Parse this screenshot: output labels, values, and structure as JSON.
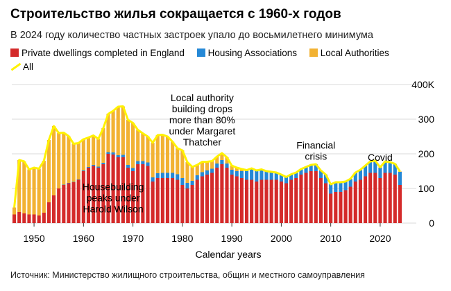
{
  "title": "Строительство жилья сокращается с 1960-х годов",
  "subtitle": "В 2024 году количество частных застроек упало до восьмилетнего минимума",
  "source": "Источник: Министерство жилищного строительства, общин и местного самоуправления",
  "colors": {
    "private": "#d42a2a",
    "ha": "#2588d6",
    "la": "#f2b233",
    "all": "#fff200",
    "grid": "#d9d9d9"
  },
  "chart_data": {
    "type": "bar",
    "stacked": true,
    "xlabel": "Calendar years",
    "ylabel": "",
    "ylim": [
      0,
      400
    ],
    "y_ticks": [
      {
        "value": 0,
        "label": "0"
      },
      {
        "value": 100,
        "label": "100"
      },
      {
        "value": 200,
        "label": "200"
      },
      {
        "value": 300,
        "label": "300"
      },
      {
        "value": 400,
        "label": "400K"
      }
    ],
    "x_ticks": [
      1950,
      1960,
      1970,
      1980,
      1990,
      2000,
      2010,
      2020
    ],
    "legend": [
      {
        "key": "private",
        "label": "Private dwellings completed in England"
      },
      {
        "key": "ha",
        "label": "Housing Associations"
      },
      {
        "key": "la",
        "label": "Local Authorities"
      },
      {
        "key": "all",
        "label": "All"
      }
    ],
    "annotations": [
      {
        "lines": [
          "Local authority",
          "building drops",
          "more than 80%",
          "under Margaret",
          "Thatcher"
        ],
        "year": 1984,
        "top_value": 352
      },
      {
        "lines": [
          "Housebuilding",
          "peaks under",
          "Harold Wilson"
        ],
        "year": 1966,
        "top_value": 95
      },
      {
        "lines": [
          "Financial",
          "crisis"
        ],
        "year": 2007,
        "top_value": 215
      },
      {
        "lines": [
          "Covid"
        ],
        "year": 2020,
        "top_value": 180
      }
    ],
    "years": [
      1946,
      1947,
      1948,
      1949,
      1950,
      1951,
      1952,
      1953,
      1954,
      1955,
      1956,
      1957,
      1958,
      1959,
      1960,
      1961,
      1962,
      1963,
      1964,
      1965,
      1966,
      1967,
      1968,
      1969,
      1970,
      1971,
      1972,
      1973,
      1974,
      1975,
      1976,
      1977,
      1978,
      1979,
      1980,
      1981,
      1982,
      1983,
      1984,
      1985,
      1986,
      1987,
      1988,
      1989,
      1990,
      1991,
      1992,
      1993,
      1994,
      1995,
      1996,
      1997,
      1998,
      1999,
      2000,
      2001,
      2002,
      2003,
      2004,
      2005,
      2006,
      2007,
      2008,
      2009,
      2010,
      2011,
      2012,
      2013,
      2014,
      2015,
      2016,
      2017,
      2018,
      2019,
      2020,
      2021,
      2022,
      2023,
      2024
    ],
    "series": [
      {
        "name": "Private dwellings completed in England",
        "key": "private",
        "values": [
          25,
          32,
          28,
          25,
          25,
          22,
          30,
          60,
          80,
          100,
          110,
          115,
          118,
          125,
          150,
          160,
          165,
          160,
          170,
          200,
          198,
          190,
          190,
          160,
          150,
          170,
          170,
          165,
          120,
          130,
          130,
          130,
          130,
          125,
          110,
          100,
          110,
          125,
          135,
          140,
          145,
          160,
          170,
          160,
          140,
          135,
          130,
          125,
          125,
          120,
          125,
          125,
          125,
          125,
          120,
          115,
          125,
          130,
          140,
          145,
          150,
          150,
          130,
          115,
          85,
          90,
          90,
          95,
          105,
          120,
          125,
          135,
          145,
          145,
          130,
          145,
          145,
          140,
          110
        ]
      },
      {
        "name": "Housing Associations",
        "key": "ha",
        "values": [
          0,
          0,
          0,
          0,
          0,
          0,
          0,
          0,
          0,
          0,
          1,
          1,
          1,
          1,
          2,
          2,
          3,
          3,
          4,
          5,
          6,
          6,
          7,
          8,
          9,
          9,
          9,
          10,
          12,
          14,
          15,
          15,
          15,
          16,
          20,
          16,
          12,
          13,
          12,
          12,
          12,
          12,
          12,
          12,
          14,
          15,
          20,
          25,
          30,
          30,
          28,
          24,
          22,
          20,
          20,
          18,
          16,
          16,
          16,
          17,
          18,
          20,
          22,
          25,
          27,
          28,
          28,
          25,
          22,
          25,
          28,
          30,
          32,
          33,
          30,
          32,
          30,
          30,
          38
        ]
      },
      {
        "name": "Local Authorities",
        "key": "la",
        "values": [
          20,
          150,
          150,
          130,
          135,
          135,
          150,
          180,
          200,
          160,
          150,
          135,
          110,
          105,
          90,
          85,
          85,
          80,
          100,
          110,
          120,
          140,
          140,
          130,
          130,
          90,
          80,
          75,
          100,
          110,
          110,
          105,
          90,
          75,
          80,
          60,
          40,
          30,
          30,
          25,
          22,
          20,
          20,
          18,
          12,
          10,
          6,
          3,
          3,
          2,
          2,
          1,
          1,
          1,
          0,
          0,
          0,
          0,
          0,
          0,
          0,
          0,
          0,
          0,
          0,
          0,
          0,
          0,
          1,
          1,
          1,
          1,
          1,
          2,
          1,
          1,
          1,
          1,
          1
        ]
      },
      {
        "name": "All",
        "key": "all",
        "values": [
          45,
          182,
          178,
          155,
          160,
          157,
          180,
          240,
          280,
          260,
          261,
          251,
          229,
          231,
          242,
          247,
          253,
          243,
          274,
          315,
          324,
          336,
          337,
          298,
          289,
          269,
          259,
          250,
          232,
          254,
          255,
          250,
          235,
          216,
          210,
          176,
          162,
          168,
          177,
          177,
          179,
          192,
          202,
          190,
          166,
          160,
          156,
          153,
          158,
          152,
          155,
          150,
          148,
          146,
          140,
          133,
          141,
          146,
          156,
          162,
          168,
          170,
          152,
          140,
          112,
          118,
          118,
          120,
          128,
          146,
          154,
          166,
          178,
          180,
          161,
          178,
          176,
          171,
          149
        ]
      }
    ]
  }
}
